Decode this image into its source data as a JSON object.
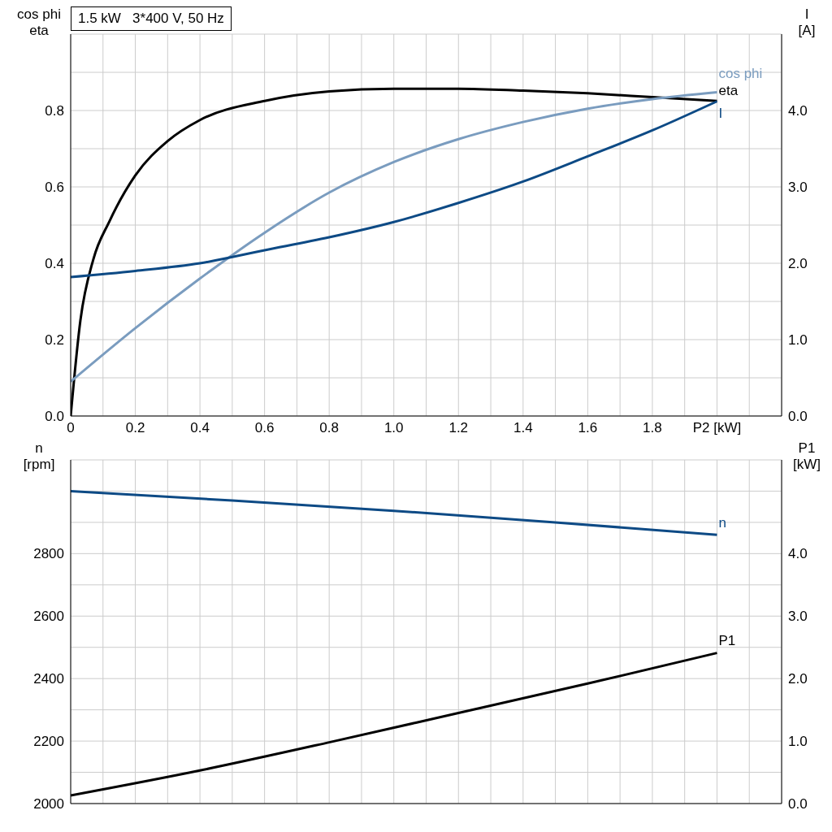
{
  "chart_data": [
    {
      "type": "line",
      "title": "1.5 kW   3*400 V, 50 Hz",
      "ylabel": "cos phi\neta",
      "y2label": "I\n[A]",
      "grid": true,
      "marker": "none",
      "xlim": [
        0,
        2.2
      ],
      "xticks": [
        {
          "value": 0,
          "label": "0"
        },
        {
          "value": 0.1,
          "label": null
        },
        0.2,
        {
          "value": 0.3,
          "label": null
        },
        0.4,
        {
          "value": 0.5,
          "label": null
        },
        0.6,
        {
          "value": 0.7,
          "label": null
        },
        0.8,
        {
          "value": 0.9,
          "label": null
        },
        {
          "value": 1,
          "label": "1.0"
        },
        {
          "value": 1.1,
          "label": null
        },
        1.2,
        {
          "value": 1.3,
          "label": null
        },
        1.4,
        {
          "value": 1.5,
          "label": null
        },
        1.6,
        {
          "value": 1.7,
          "label": null
        },
        1.8,
        {
          "value": 1.9,
          "label": null
        },
        {
          "value": 2,
          "label": "P2 [kW]"
        },
        {
          "value": 2.1,
          "label": null
        },
        {
          "value": 2.2,
          "label": null
        }
      ],
      "ylim": [
        0,
        1
      ],
      "yticks": [
        {
          "value": 0,
          "label": "0.0"
        },
        {
          "value": 0.1,
          "label": null
        },
        0.2,
        {
          "value": 0.3,
          "label": null
        },
        0.4,
        {
          "value": 0.5,
          "label": null
        },
        0.6,
        {
          "value": 0.7,
          "label": null
        },
        0.8,
        {
          "value": 0.9,
          "label": null
        },
        {
          "value": 1,
          "label": null
        }
      ],
      "y2lim": [
        0,
        5
      ],
      "y2ticks": [
        {
          "value": 0,
          "label": "0.0"
        },
        {
          "value": 1,
          "label": "1.0"
        },
        {
          "value": 2,
          "label": "2.0"
        },
        {
          "value": 3,
          "label": "3.0"
        },
        {
          "value": 4,
          "label": "4.0"
        }
      ],
      "series": [
        {
          "name": "eta",
          "color": "#000000",
          "x": [
            0,
            0.03,
            0.07,
            0.12,
            0.2,
            0.3,
            0.4,
            0.6,
            0.8,
            1.0,
            1.2,
            1.4,
            1.6,
            1.8,
            2.0
          ],
          "values": [
            0,
            0.25,
            0.41,
            0.51,
            0.63,
            0.72,
            0.775,
            0.825,
            0.85,
            0.857,
            0.857,
            0.852,
            0.845,
            0.835,
            0.825
          ]
        },
        {
          "name": "cos phi",
          "color": "#7a9cbf",
          "x": [
            0,
            0.2,
            0.4,
            0.6,
            0.8,
            1.0,
            1.2,
            1.4,
            1.6,
            1.8,
            2.0
          ],
          "values": [
            0.09,
            0.23,
            0.36,
            0.48,
            0.585,
            0.665,
            0.725,
            0.77,
            0.805,
            0.83,
            0.848
          ]
        },
        {
          "name": "I",
          "color": "#0d4a85",
          "axis": "y2",
          "x": [
            0,
            0.2,
            0.4,
            0.6,
            0.8,
            1.0,
            1.2,
            1.4,
            1.6,
            1.8,
            2.0
          ],
          "values": [
            1.82,
            1.9,
            2.0,
            2.17,
            2.34,
            2.54,
            2.79,
            3.07,
            3.4,
            3.74,
            4.12
          ]
        }
      ]
    },
    {
      "type": "line",
      "ylabel": "n\n[rpm]",
      "y2label": "P1\n[kW]",
      "grid": true,
      "marker": "none",
      "tick_labels": "y",
      "xlim": [
        0,
        2.2
      ],
      "xticks": [
        0,
        0.1,
        0.2,
        0.3,
        0.4,
        0.5,
        0.6,
        0.7,
        0.8,
        0.9,
        1,
        1.1,
        1.2,
        1.3,
        1.4,
        1.5,
        1.6,
        1.7,
        1.8,
        1.9,
        2,
        2.1,
        2.2
      ],
      "ylim": [
        2000,
        3100
      ],
      "yticks": [
        2000,
        {
          "value": 2100,
          "label": null
        },
        2200,
        {
          "value": 2300,
          "label": null
        },
        2400,
        {
          "value": 2500,
          "label": null
        },
        2600,
        {
          "value": 2700,
          "label": null
        },
        2800,
        {
          "value": 2900,
          "label": null
        },
        {
          "value": 3000,
          "label": null
        },
        {
          "value": 3100,
          "label": null
        }
      ],
      "y2lim": [
        0,
        5.5
      ],
      "y2ticks": [
        {
          "value": 0,
          "label": "0.0"
        },
        {
          "value": 1,
          "label": "1.0"
        },
        {
          "value": 2,
          "label": "2.0"
        },
        {
          "value": 3,
          "label": "3.0"
        },
        {
          "value": 4,
          "label": "4.0"
        }
      ],
      "series": [
        {
          "name": "n",
          "color": "#0d4a85",
          "x": [
            0,
            0.5,
            1.0,
            1.5,
            2.0
          ],
          "values": [
            3000,
            2970,
            2937,
            2900,
            2860
          ]
        },
        {
          "name": "P1",
          "color": "#000000",
          "axis": "y2",
          "x": [
            0,
            0.4,
            0.8,
            1.2,
            1.6,
            2.0
          ],
          "values": [
            0.13,
            0.53,
            0.98,
            1.45,
            1.92,
            2.41
          ]
        }
      ]
    }
  ]
}
